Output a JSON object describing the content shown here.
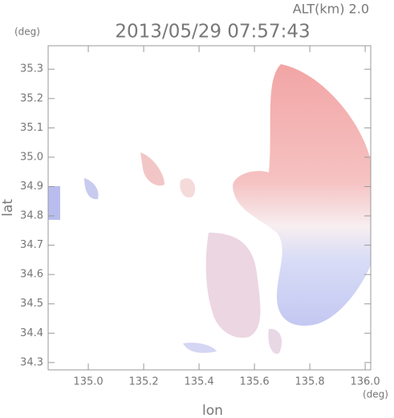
{
  "chart_data": {
    "type": "radar",
    "annotation": "ALT(km) 2.0",
    "title": "2013/05/29 07:57:43",
    "y_unit": "(deg)",
    "x_unit": "(deg)",
    "xlabel": "lon",
    "ylabel": "lat",
    "xlim": [
      134.855,
      136.02
    ],
    "xticks": [
      {
        "value": 135,
        "label": "135.0"
      },
      135.2,
      135.4,
      135.6,
      135.8,
      {
        "value": 136,
        "label": "136.0"
      }
    ],
    "ylim": [
      34.275,
      35.38
    ],
    "yticks": [
      {
        "value": 34.3,
        "label": "34.3"
      },
      34.4,
      34.5,
      34.6,
      34.7,
      34.8,
      34.9,
      {
        "value": 35,
        "label": "35.0"
      },
      35.1,
      35.2,
      35.3
    ]
  }
}
